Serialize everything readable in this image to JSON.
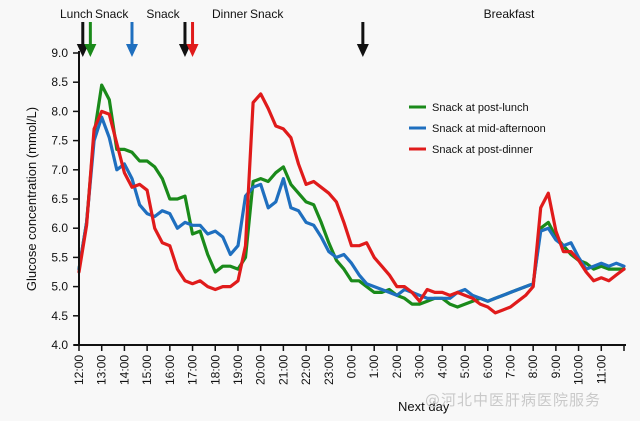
{
  "chart_data": {
    "type": "line",
    "title": "",
    "xlabel": "Next day",
    "ylabel": "Glucose concentration (mmol/L)",
    "ylim": [
      4.0,
      9.0
    ],
    "yticks": [
      "4.0",
      "4.5",
      "5.0",
      "5.5",
      "6.0",
      "6.5",
      "7.0",
      "7.5",
      "8.0",
      "8.5",
      "9.0"
    ],
    "xticks": [
      "12:00",
      "13:00",
      "14:00",
      "15:00",
      "16:00",
      "17:00",
      "18:00",
      "19:00",
      "20:00",
      "21:00",
      "22:00",
      "23:00",
      "0:00",
      "1:00",
      "2:00",
      "3:00",
      "4:00",
      "5:00",
      "6:00",
      "7:00",
      "8:00",
      "9:00",
      "10:00",
      "11:00"
    ],
    "x_hours": [
      0,
      0.5,
      1,
      1.5,
      2,
      2.5,
      3,
      3.5,
      4,
      4.5,
      5,
      5.5,
      6,
      6.5,
      7,
      7.5,
      8,
      8.5,
      9,
      9.5,
      10,
      10.5,
      11,
      11.5,
      12,
      12.5,
      13,
      13.5,
      14,
      14.5,
      15,
      15.5,
      16,
      16.5,
      17,
      17.5,
      18,
      18.5,
      19,
      19.5,
      20,
      20.5,
      21,
      21.5,
      22,
      22.5,
      23,
      23.5
    ],
    "grid": false,
    "legend_position": "right-top",
    "series": [
      {
        "name": "Snack at post-lunch",
        "color": "#1a8a1a",
        "values": [
          5.3,
          6.1,
          7.6,
          8.45,
          8.2,
          7.35,
          7.35,
          7.3,
          7.15,
          7.15,
          7.05,
          6.85,
          6.5,
          6.5,
          6.55,
          5.9,
          5.95,
          5.55,
          5.25,
          5.35,
          5.35,
          5.3,
          5.5,
          6.8,
          6.85,
          6.8,
          6.95,
          7.05,
          6.75,
          6.6,
          6.45,
          6.4,
          6.1,
          5.75,
          5.45,
          5.3,
          5.1,
          5.1,
          5.0,
          4.9,
          4.9,
          4.95,
          4.85,
          4.8,
          4.7,
          4.7,
          4.75,
          4.8
        ]
      },
      {
        "name": "Snack at mid-afternoon",
        "color": "#1f6fbf",
        "values": [
          5.3,
          6.1,
          7.5,
          7.9,
          7.55,
          7.0,
          7.1,
          6.85,
          6.4,
          6.25,
          6.2,
          6.3,
          6.25,
          6.0,
          6.1,
          6.05,
          6.05,
          5.9,
          5.95,
          5.85,
          5.55,
          5.7,
          6.55,
          6.7,
          6.75,
          6.35,
          6.45,
          6.85,
          6.35,
          6.3,
          6.1,
          6.05,
          5.85,
          5.6,
          5.5,
          5.55,
          5.4,
          5.2,
          5.05,
          5.0,
          4.95,
          4.9,
          4.85,
          4.95,
          4.9,
          4.85,
          4.8,
          4.8
        ]
      },
      {
        "name": "Snack at post-dinner",
        "color": "#e01b1b",
        "values": [
          5.25,
          6.05,
          7.7,
          8.0,
          7.95,
          7.45,
          6.95,
          6.7,
          6.75,
          6.65,
          6.0,
          5.75,
          5.7,
          5.3,
          5.1,
          5.05,
          5.1,
          5.0,
          4.95,
          5.0,
          5.0,
          5.1,
          5.7,
          8.15,
          8.3,
          8.05,
          7.75,
          7.7,
          7.55,
          7.1,
          6.75,
          6.8,
          6.7,
          6.6,
          6.45,
          6.1,
          5.7,
          5.7,
          5.75,
          5.5,
          5.35,
          5.2,
          5.0,
          5.0,
          4.9,
          4.75,
          4.95,
          4.9
        ]
      }
    ],
    "x_hours_tail": [
      24,
      24.5,
      25,
      25.5,
      26,
      26.5,
      27,
      27.5,
      28,
      28.5,
      29,
      29.5,
      30,
      30.5,
      31,
      31.5,
      32,
      32.5,
      33,
      33.5,
      34,
      34.5,
      35,
      35.5,
      36
    ],
    "series_tail": [
      [
        4.8,
        4.7,
        4.65,
        4.7,
        4.75,
        4.8,
        4.75,
        4.8,
        4.85,
        4.9,
        4.95,
        5.0,
        5.05,
        6.0,
        6.1,
        5.85,
        5.7,
        5.55,
        5.45,
        5.4,
        5.3,
        5.35,
        5.3,
        5.3,
        5.3
      ],
      [
        4.8,
        4.8,
        4.9,
        4.95,
        4.85,
        4.8,
        4.75,
        4.8,
        4.85,
        4.9,
        4.95,
        5.0,
        5.05,
        5.95,
        6.0,
        5.8,
        5.7,
        5.75,
        5.5,
        5.3,
        5.35,
        5.4,
        5.35,
        5.4,
        5.35
      ],
      [
        4.9,
        4.85,
        4.9,
        4.85,
        4.8,
        4.7,
        4.65,
        4.55,
        4.6,
        4.65,
        4.75,
        4.85,
        5.0,
        6.35,
        6.6,
        5.95,
        5.6,
        5.6,
        5.45,
        5.25,
        5.1,
        5.15,
        5.1,
        5.2,
        5.3
      ]
    ],
    "events": [
      {
        "label": "Lunch",
        "hour": 0.25,
        "color": "#111111"
      },
      {
        "label": "Snack",
        "hour": 0.75,
        "color": "#1a8a1a"
      },
      {
        "label": "Snack",
        "hour": 3.5,
        "color": "#1f6fbf"
      },
      {
        "label": "Dinner",
        "hour": 7.0,
        "color": "#111111"
      },
      {
        "label": "Snack",
        "hour": 7.5,
        "color": "#e01b1b"
      },
      {
        "label": "Breakfast",
        "hour": 18.75,
        "color": "#111111"
      }
    ],
    "x_range_hours": [
      0,
      24
    ]
  },
  "watermark": "@河北中医肝病医院服务"
}
